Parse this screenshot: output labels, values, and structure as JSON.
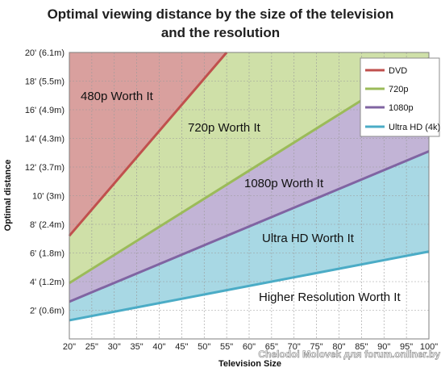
{
  "chart_data": {
    "type": "line",
    "title_line1": "Optimal viewing distance by the size of the television",
    "title_line2": "and the resolution",
    "xlabel": "Television Size",
    "ylabel": "Optimal distance",
    "x": [
      20,
      100
    ],
    "x_tick_labels": [
      "20\"",
      "25\"",
      "30\"",
      "35\"",
      "40\"",
      "45\"",
      "50\"",
      "55\"",
      "60\"",
      "65\"",
      "70\"",
      "75\"",
      "80\"",
      "85\"",
      "90\"",
      "95\"",
      "100\""
    ],
    "y_tick_labels": [
      "2' (0.6m)",
      "4' (1.2m)",
      "6' (1.8m)",
      "8' (2.4m)",
      "10' (3m)",
      "12' (3.7m)",
      "14' (4.3m)",
      "16' (4.9m)",
      "18' (5.5m)",
      "20' (6.1m)"
    ],
    "xlim": [
      20,
      100
    ],
    "ylim": [
      0,
      20
    ],
    "grid": true,
    "legend_position": "top-right",
    "series": [
      {
        "name": "DVD",
        "color": "#c0504d",
        "points": [
          [
            20,
            7.2
          ],
          [
            55,
            20
          ]
        ]
      },
      {
        "name": "720p",
        "color": "#9bbb59",
        "points": [
          [
            20,
            3.9
          ],
          [
            100,
            19.6
          ]
        ]
      },
      {
        "name": "1080p",
        "color": "#8064a2",
        "points": [
          [
            20,
            2.6
          ],
          [
            100,
            13.1
          ]
        ]
      },
      {
        "name": "Ultra HD (4k)",
        "color": "#4bacc6",
        "points": [
          [
            20,
            1.3
          ],
          [
            100,
            6.1
          ]
        ]
      }
    ],
    "regions": [
      {
        "label": "480p Worth It",
        "color": "#d9a09e"
      },
      {
        "label": "720p Worth It",
        "color": "#cfe0a8"
      },
      {
        "label": "1080p Worth It",
        "color": "#c2b4d6"
      },
      {
        "label": "Ultra HD Worth It",
        "color": "#a8d8e4"
      },
      {
        "label": "Higher Resolution Worth It",
        "color": "#ffffff"
      }
    ]
  },
  "watermark": "Chelodoi Molovek для forum.onliner.by"
}
